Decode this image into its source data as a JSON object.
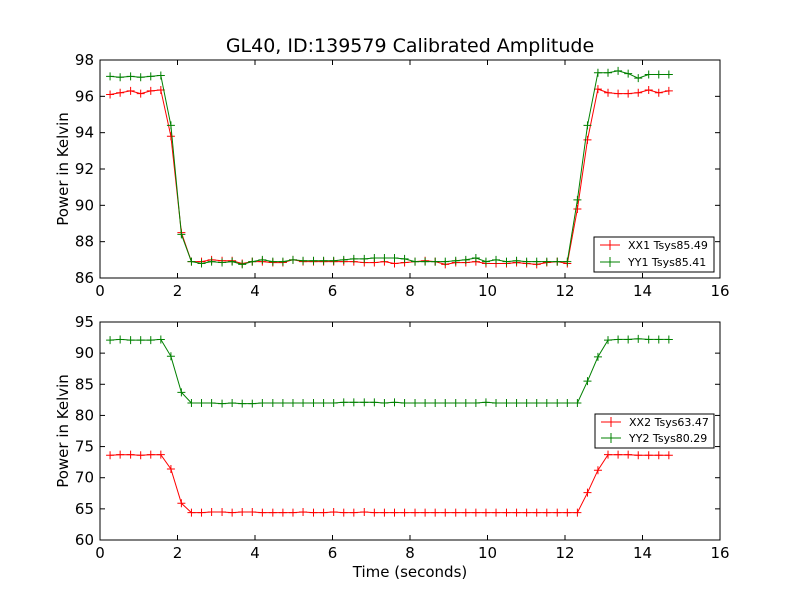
{
  "chart_data": [
    {
      "type": "line",
      "title": "GL40, ID:139579 Calibrated Amplitude",
      "xlabel": "",
      "ylabel": "Power in Kelvin",
      "xlim": [
        0,
        16
      ],
      "ylim": [
        86,
        98
      ],
      "xticks": [
        0,
        2,
        4,
        6,
        8,
        10,
        12,
        14,
        16
      ],
      "yticks": [
        86,
        88,
        90,
        92,
        94,
        96,
        98
      ],
      "legend_position": "lower-right",
      "x": [
        0.26,
        0.52,
        0.79,
        1.05,
        1.31,
        1.57,
        1.83,
        2.1,
        2.36,
        2.62,
        2.88,
        3.15,
        3.41,
        3.67,
        3.93,
        4.19,
        4.46,
        4.72,
        4.98,
        5.24,
        5.51,
        5.77,
        6.03,
        6.29,
        6.55,
        6.82,
        7.08,
        7.34,
        7.6,
        7.86,
        8.13,
        8.39,
        8.65,
        8.91,
        9.18,
        9.44,
        9.7,
        9.96,
        10.22,
        10.49,
        10.75,
        11.01,
        11.27,
        11.53,
        11.8,
        12.06,
        12.32,
        12.58,
        12.85,
        13.11,
        13.37,
        13.63,
        13.89,
        14.16,
        14.42,
        14.68
      ],
      "series": [
        {
          "name": "XX1 Tsys85.49",
          "color": "#ff0000",
          "values": [
            96.1,
            96.2,
            96.3,
            96.15,
            96.3,
            96.35,
            93.8,
            88.5,
            86.9,
            86.9,
            87.0,
            86.95,
            86.95,
            86.8,
            86.9,
            86.9,
            86.85,
            86.85,
            87.0,
            86.9,
            86.9,
            86.9,
            86.9,
            86.9,
            86.9,
            86.85,
            86.85,
            86.9,
            86.8,
            86.85,
            86.9,
            86.95,
            86.9,
            86.75,
            86.85,
            86.85,
            86.9,
            86.8,
            86.8,
            86.8,
            86.85,
            86.8,
            86.75,
            86.85,
            86.9,
            86.8,
            89.8,
            93.6,
            96.4,
            96.2,
            96.15,
            96.15,
            96.2,
            96.35,
            96.2,
            96.3
          ]
        },
        {
          "name": "YY1 Tsys85.41",
          "color": "#008000",
          "values": [
            97.1,
            97.05,
            97.1,
            97.05,
            97.1,
            97.15,
            94.4,
            88.4,
            86.9,
            86.8,
            86.9,
            86.85,
            86.9,
            86.75,
            86.9,
            87.0,
            86.9,
            86.9,
            87.0,
            86.95,
            86.95,
            86.95,
            86.95,
            87.0,
            87.05,
            87.05,
            87.1,
            87.1,
            87.1,
            87.05,
            86.9,
            86.9,
            86.9,
            86.9,
            86.95,
            87.0,
            87.1,
            86.9,
            87.0,
            86.9,
            86.95,
            86.9,
            86.9,
            86.9,
            86.9,
            86.9,
            90.3,
            94.4,
            97.3,
            97.3,
            97.4,
            97.25,
            97.0,
            97.2,
            97.2,
            97.2
          ]
        }
      ]
    },
    {
      "type": "line",
      "title": "",
      "xlabel": "Time (seconds)",
      "ylabel": "Power in Kelvin",
      "xlim": [
        0,
        16
      ],
      "ylim": [
        60,
        95
      ],
      "xticks": [
        0,
        2,
        4,
        6,
        8,
        10,
        12,
        14,
        16
      ],
      "yticks": [
        60,
        65,
        70,
        75,
        80,
        85,
        90,
        95
      ],
      "legend_position": "center-right",
      "x": [
        0.26,
        0.52,
        0.79,
        1.05,
        1.31,
        1.57,
        1.83,
        2.1,
        2.36,
        2.62,
        2.88,
        3.15,
        3.41,
        3.67,
        3.93,
        4.19,
        4.46,
        4.72,
        4.98,
        5.24,
        5.51,
        5.77,
        6.03,
        6.29,
        6.55,
        6.82,
        7.08,
        7.34,
        7.6,
        7.86,
        8.13,
        8.39,
        8.65,
        8.91,
        9.18,
        9.44,
        9.7,
        9.96,
        10.22,
        10.49,
        10.75,
        11.01,
        11.27,
        11.53,
        11.8,
        12.06,
        12.32,
        12.58,
        12.85,
        13.11,
        13.37,
        13.63,
        13.89,
        14.16,
        14.42,
        14.68
      ],
      "series": [
        {
          "name": "XX2 Tsys63.47",
          "color": "#ff0000",
          "values": [
            73.6,
            73.7,
            73.7,
            73.6,
            73.7,
            73.7,
            71.4,
            65.9,
            64.4,
            64.4,
            64.5,
            64.5,
            64.4,
            64.5,
            64.5,
            64.4,
            64.4,
            64.4,
            64.4,
            64.5,
            64.4,
            64.4,
            64.5,
            64.4,
            64.4,
            64.5,
            64.4,
            64.4,
            64.4,
            64.4,
            64.4,
            64.4,
            64.4,
            64.4,
            64.4,
            64.4,
            64.4,
            64.4,
            64.4,
            64.4,
            64.4,
            64.4,
            64.4,
            64.4,
            64.4,
            64.4,
            64.4,
            67.6,
            71.2,
            73.7,
            73.7,
            73.7,
            73.6,
            73.6,
            73.6,
            73.6
          ]
        },
        {
          "name": "YY2 Tsys80.29",
          "color": "#008000",
          "values": [
            92.1,
            92.2,
            92.1,
            92.1,
            92.1,
            92.2,
            89.5,
            83.7,
            82.0,
            82.0,
            82.0,
            81.9,
            82.0,
            81.9,
            81.9,
            82.0,
            82.0,
            82.0,
            82.0,
            82.0,
            82.0,
            82.0,
            82.0,
            82.1,
            82.1,
            82.1,
            82.1,
            82.0,
            82.1,
            82.0,
            82.0,
            82.0,
            82.0,
            82.0,
            82.0,
            82.0,
            82.0,
            82.1,
            82.0,
            82.0,
            82.0,
            82.0,
            82.0,
            82.0,
            82.0,
            82.0,
            82.0,
            85.5,
            89.4,
            92.1,
            92.2,
            92.2,
            92.3,
            92.2,
            92.2,
            92.2
          ]
        }
      ]
    }
  ]
}
